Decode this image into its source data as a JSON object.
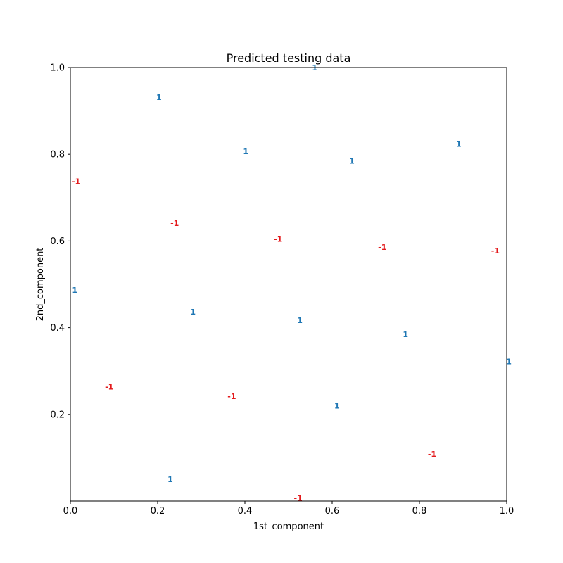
{
  "chart_data": {
    "type": "scatter",
    "title": "Predicted testing data",
    "xlabel": "1st_component",
    "ylabel": "2nd_component",
    "xlim": [
      0,
      1
    ],
    "ylim": [
      0,
      1
    ],
    "x_ticks": [
      "0.0",
      "0.2",
      "0.4",
      "0.6",
      "0.8",
      "1.0"
    ],
    "y_ticks": [
      "0.2",
      "0.4",
      "0.6",
      "0.8",
      "1.0"
    ],
    "grid": false,
    "legend": "none",
    "colors": {
      "1": "#1f77b4",
      "-1": "#e31a1c"
    },
    "points": [
      {
        "x": 0.56,
        "y": 1.0,
        "label": "1"
      },
      {
        "x": 0.203,
        "y": 0.932,
        "label": "1"
      },
      {
        "x": 0.402,
        "y": 0.807,
        "label": "1"
      },
      {
        "x": 0.645,
        "y": 0.785,
        "label": "1"
      },
      {
        "x": 0.89,
        "y": 0.824,
        "label": "1"
      },
      {
        "x": 0.013,
        "y": 0.738,
        "label": "-1"
      },
      {
        "x": 0.239,
        "y": 0.641,
        "label": "-1"
      },
      {
        "x": 0.476,
        "y": 0.605,
        "label": "-1"
      },
      {
        "x": 0.715,
        "y": 0.586,
        "label": "-1"
      },
      {
        "x": 0.974,
        "y": 0.578,
        "label": "-1"
      },
      {
        "x": 0.01,
        "y": 0.487,
        "label": "1"
      },
      {
        "x": 0.281,
        "y": 0.437,
        "label": "1"
      },
      {
        "x": 0.526,
        "y": 0.417,
        "label": "1"
      },
      {
        "x": 0.768,
        "y": 0.385,
        "label": "1"
      },
      {
        "x": 1.005,
        "y": 0.322,
        "label": "1"
      },
      {
        "x": 0.089,
        "y": 0.264,
        "label": "-1"
      },
      {
        "x": 0.37,
        "y": 0.242,
        "label": "-1"
      },
      {
        "x": 0.611,
        "y": 0.22,
        "label": "1"
      },
      {
        "x": 0.829,
        "y": 0.109,
        "label": "-1"
      },
      {
        "x": 0.229,
        "y": 0.05,
        "label": "1"
      },
      {
        "x": 0.522,
        "y": 0.007,
        "label": "-1"
      }
    ]
  }
}
